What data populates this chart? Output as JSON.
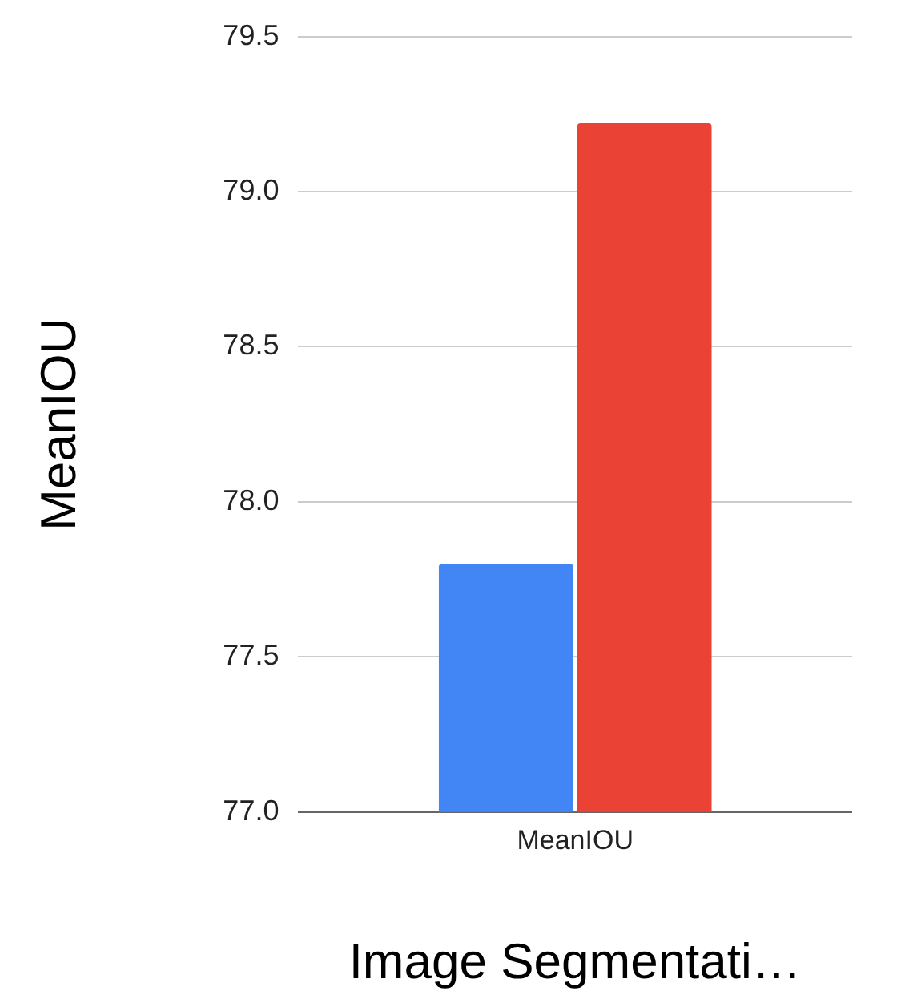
{
  "chart_data": {
    "type": "bar",
    "xlabel": "Image Segmentati…",
    "ylabel": "MeanIOU",
    "categories": [
      "MeanIOU"
    ],
    "series": [
      {
        "color": "#4285f4",
        "values": [
          77.8
        ]
      },
      {
        "color": "#ea4335",
        "values": [
          79.22
        ]
      }
    ],
    "ylim": [
      77.0,
      79.5
    ],
    "yticks": [
      {
        "value": 77,
        "label": "77.0"
      },
      {
        "value": 77.5,
        "label": "77.5"
      },
      {
        "value": 78,
        "label": "78.0"
      },
      {
        "value": 78.5,
        "label": "78.5"
      },
      {
        "value": 79,
        "label": "79.0"
      },
      {
        "value": 79.5,
        "label": "79.5"
      }
    ],
    "grid": "y",
    "legend": false
  }
}
